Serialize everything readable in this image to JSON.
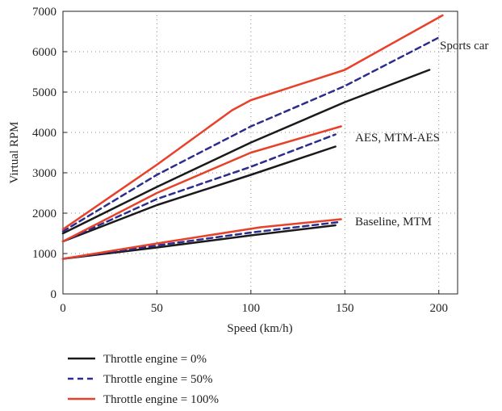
{
  "chart_data": {
    "type": "line",
    "xlabel": "Speed (km/h)",
    "ylabel": "Virtual RPM",
    "xlim": [
      0,
      210
    ],
    "ylim": [
      0,
      7000
    ],
    "xticks": [
      0,
      50,
      100,
      150,
      200
    ],
    "yticks": [
      0,
      1000,
      2000,
      3000,
      4000,
      5000,
      6000,
      7000
    ],
    "grid": "dotted",
    "legend_position": "below",
    "legend": [
      {
        "label": "Throttle engine = 0%",
        "color": "#1a1a1a",
        "dash": "solid"
      },
      {
        "label": "Throttle engine = 50%",
        "color": "#2b2d8c",
        "dash": "dashed"
      },
      {
        "label": "Throttle engine = 100%",
        "color": "#e8412a",
        "dash": "solid"
      }
    ],
    "annotations": [
      "Sports car",
      "AES, MTM-AES",
      "Baseline, MTM"
    ],
    "series": [
      {
        "group": "Sports car",
        "throttle": "0%",
        "x": [
          0,
          50,
          100,
          150,
          195
        ],
        "y": [
          1500,
          2650,
          3750,
          4750,
          5550
        ]
      },
      {
        "group": "Sports car",
        "throttle": "50%",
        "x": [
          0,
          50,
          100,
          150,
          200
        ],
        "y": [
          1550,
          2950,
          4150,
          5150,
          6350
        ]
      },
      {
        "group": "Sports car",
        "throttle": "100%",
        "x": [
          0,
          50,
          90,
          100,
          150,
          202
        ],
        "y": [
          1600,
          3200,
          4550,
          4800,
          5550,
          6900
        ]
      },
      {
        "group": "AES, MTM-AES",
        "throttle": "0%",
        "x": [
          0,
          50,
          100,
          145
        ],
        "y": [
          1300,
          2200,
          2950,
          3650
        ]
      },
      {
        "group": "AES, MTM-AES",
        "throttle": "50%",
        "x": [
          0,
          50,
          100,
          145
        ],
        "y": [
          1300,
          2350,
          3150,
          3950
        ]
      },
      {
        "group": "AES, MTM-AES",
        "throttle": "100%",
        "x": [
          0,
          50,
          100,
          148
        ],
        "y": [
          1300,
          2500,
          3500,
          4150
        ]
      },
      {
        "group": "Baseline, MTM",
        "throttle": "0%",
        "x": [
          0,
          50,
          100,
          145
        ],
        "y": [
          870,
          1150,
          1450,
          1700
        ]
      },
      {
        "group": "Baseline, MTM",
        "throttle": "50%",
        "x": [
          0,
          50,
          100,
          147
        ],
        "y": [
          870,
          1200,
          1520,
          1780
        ]
      },
      {
        "group": "Baseline, MTM",
        "throttle": "100%",
        "x": [
          0,
          50,
          105,
          148
        ],
        "y": [
          870,
          1250,
          1650,
          1850
        ]
      }
    ]
  }
}
